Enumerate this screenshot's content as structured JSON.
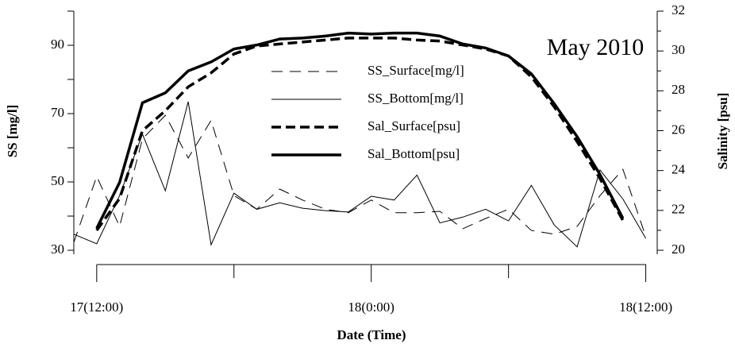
{
  "chart_data": {
    "type": "line",
    "annotation": "May 2010",
    "x_label": "Date (Time)",
    "y_label": "SS [mg/l]",
    "y2_label": "Salinity [psu]",
    "x": [
      11,
      12,
      13,
      14,
      15,
      16,
      17,
      18,
      19,
      20,
      21,
      22,
      23,
      24,
      25,
      26,
      27,
      28,
      29,
      30,
      31,
      32,
      33,
      34,
      35,
      36
    ],
    "xlim": [
      11,
      36.5
    ],
    "xticks": [
      {
        "value": 12,
        "label": "17(12:00)"
      },
      {
        "value": 24,
        "label": "18(0:00)"
      },
      {
        "value": 36,
        "label": "18(12:00)"
      }
    ],
    "xminorticks": [
      18,
      30
    ],
    "ylim": [
      30,
      100
    ],
    "yticks": [
      30,
      50,
      70,
      90
    ],
    "yminorticks": [
      40,
      60,
      80,
      100
    ],
    "y2lim": [
      20,
      32
    ],
    "y2ticks": [
      20,
      22,
      24,
      26,
      28,
      30,
      32
    ],
    "y2minorticks": [
      21,
      23,
      25,
      27,
      29,
      31
    ],
    "series": [
      {
        "name": "SS_Surface[mg/l]",
        "color": "#000000",
        "style": "dashed",
        "linewidth": 1,
        "values": [
          32.3,
          51.6,
          37,
          62.6,
          69.5,
          57,
          68,
          46,
          42,
          47.9,
          44.7,
          42,
          41,
          44.7,
          41,
          41,
          41.4,
          36.3,
          39.3,
          42,
          35.8,
          34.7,
          37,
          46,
          53.7,
          34
        ]
      },
      {
        "name": "SS_Bottom[mg/l]",
        "color": "#000000",
        "style": "solid",
        "linewidth": 1,
        "values": [
          34.7,
          31.9,
          46,
          64,
          47.4,
          73.5,
          31.6,
          46.7,
          42,
          43.9,
          42.3,
          41.6,
          41.2,
          45.8,
          44.7,
          52,
          38,
          39.7,
          42,
          38.6,
          49,
          37.4,
          31,
          53.5,
          45,
          33.5
        ]
      },
      {
        "name": "Sal_Surface[psu]",
        "color": "#000000",
        "style": "dashed",
        "linewidth": 3.5,
        "axis": "y2",
        "values": [
          null,
          21.0,
          22.6,
          26.0,
          27.0,
          28.2,
          28.9,
          29.85,
          30.25,
          30.35,
          30.45,
          30.55,
          30.65,
          30.65,
          30.65,
          30.55,
          30.5,
          30.3,
          30.1,
          29.75,
          28.7,
          27.2,
          25.45,
          23.6,
          21.5,
          null
        ]
      },
      {
        "name": "Sal_Bottom[psu]",
        "color": "#000000",
        "style": "solid",
        "linewidth": 3.5,
        "axis": "y2",
        "values": [
          null,
          21.1,
          23.4,
          27.4,
          27.9,
          29.0,
          29.45,
          30.1,
          30.3,
          30.6,
          30.65,
          30.75,
          30.9,
          30.85,
          30.9,
          30.9,
          30.75,
          30.35,
          30.15,
          29.75,
          28.85,
          27.35,
          25.7,
          23.8,
          21.6,
          null
        ]
      }
    ]
  }
}
